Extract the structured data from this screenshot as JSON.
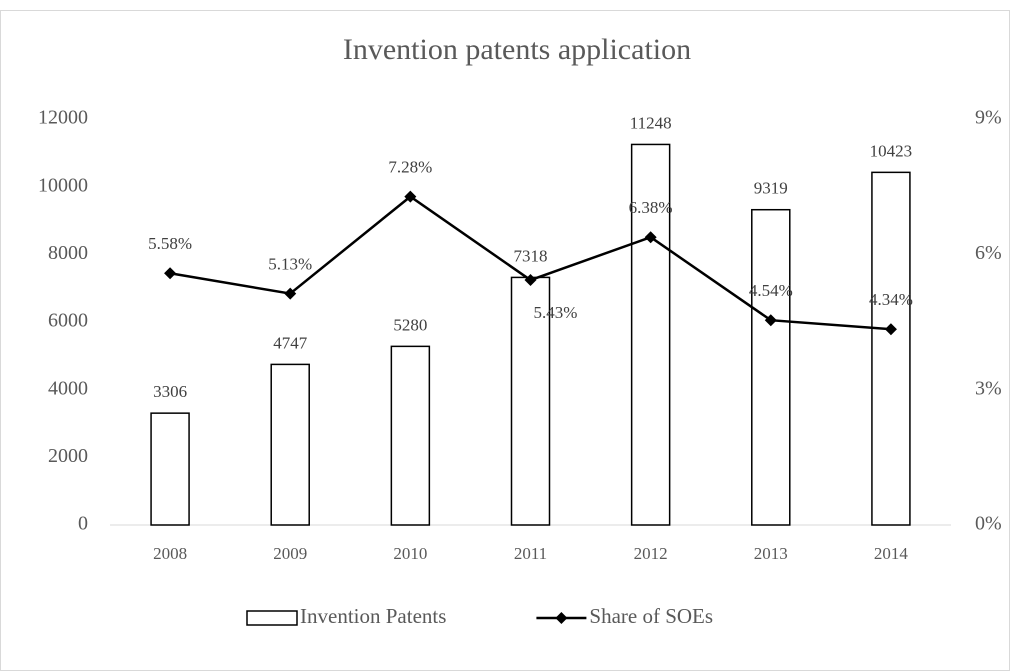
{
  "chart_data": {
    "type": "bar-line",
    "title": "Invention patents application",
    "categories": [
      "2008",
      "2009",
      "2010",
      "2011",
      "2012",
      "2013",
      "2014"
    ],
    "series": [
      {
        "name": "Invention Patents",
        "type": "bar",
        "color": "#ffffff",
        "values": [
          3306,
          4747,
          5280,
          7318,
          11248,
          9319,
          10423
        ]
      },
      {
        "name": "Share of SOEs",
        "type": "line",
        "axis": "y2",
        "color": "#000000",
        "values": [
          5.58,
          5.13,
          7.28,
          5.43,
          6.38,
          4.54,
          4.34
        ],
        "value_labels": [
          "5.58%",
          "5.13%",
          "7.28%",
          "5.43%",
          "6.38%",
          "4.54%",
          "4.34%"
        ]
      }
    ],
    "ylim": [
      0,
      12000
    ],
    "yticks": [
      0,
      2000,
      4000,
      6000,
      8000,
      10000,
      12000
    ],
    "y2lim": [
      0,
      9
    ],
    "y2ticks": [
      {
        "value": 0,
        "label": "0%"
      },
      {
        "value": 3,
        "label": "3%"
      },
      {
        "value": 6,
        "label": "6%"
      },
      {
        "value": 9,
        "label": "9%"
      }
    ],
    "grid": false,
    "legend": "bottom"
  }
}
